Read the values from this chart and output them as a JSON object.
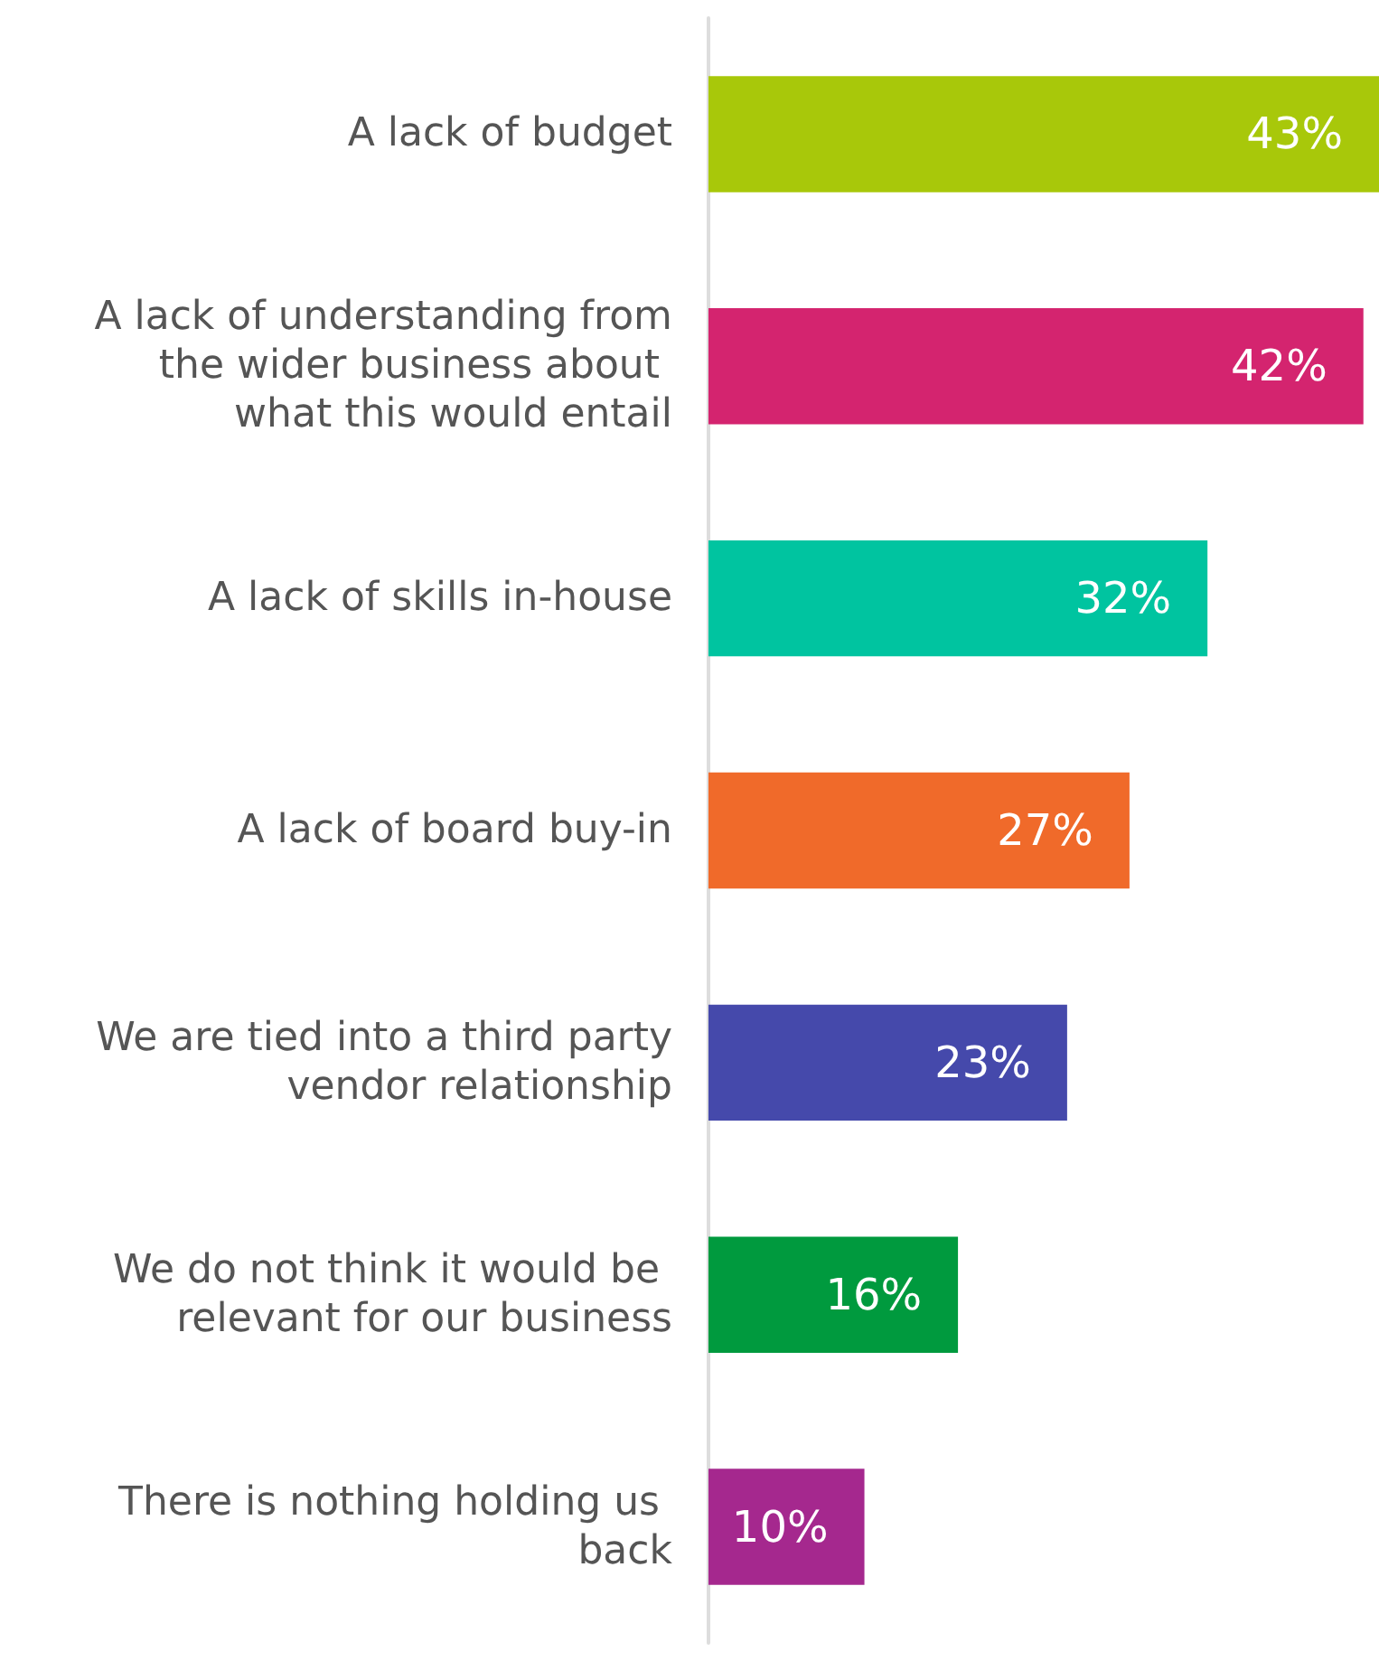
{
  "chart_data": {
    "type": "bar",
    "orientation": "horizontal",
    "categories": [
      "A lack of budget",
      "A lack of understanding from the wider business about what this would entail",
      "A lack of skills in-house",
      "A lack of board buy-in",
      "We are tied into a third party vendor relationship",
      "We do not think it would be relevant for our business",
      "There is nothing holding us back"
    ],
    "values": [
      43,
      42,
      32,
      27,
      23,
      16,
      10
    ],
    "value_labels": [
      "43%",
      "42%",
      "32%",
      "27%",
      "23%",
      "16%",
      "10%"
    ],
    "colors": [
      "#a8c80a",
      "#d4246f",
      "#00c4a0",
      "#f06a2a",
      "#4549ab",
      "#009a3e",
      "#a5288e"
    ]
  }
}
